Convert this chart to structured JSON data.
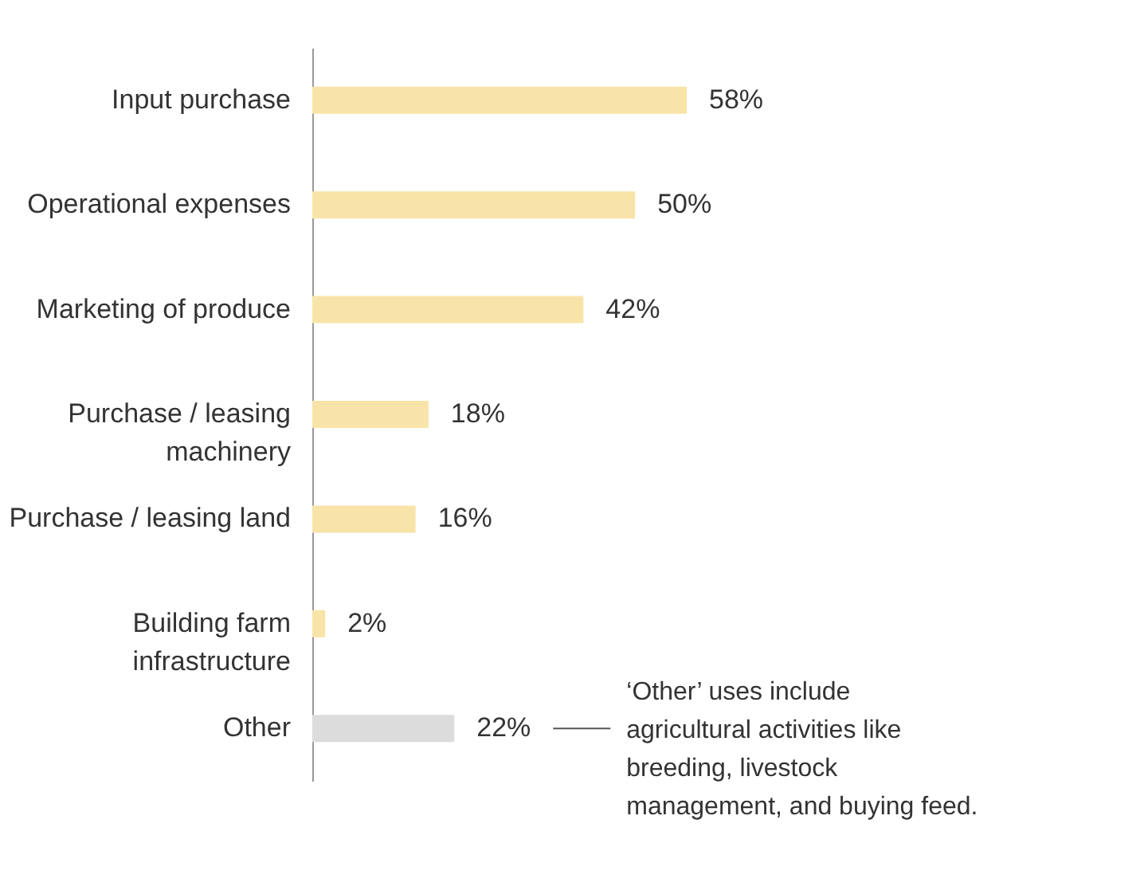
{
  "chart_data": {
    "type": "bar",
    "orientation": "horizontal",
    "categories": [
      "Input purchase",
      "Operational expenses",
      "Marketing of produce",
      "Purchase / leasing\nmachinery",
      "Purchase / leasing land",
      "Building farm\ninfrastructure",
      "Other"
    ],
    "values": [
      58,
      50,
      42,
      18,
      16,
      2,
      22
    ],
    "colors": [
      "#f8e4a8",
      "#f8e4a8",
      "#f8e4a8",
      "#f8e4a8",
      "#f8e4a8",
      "#f8e4a8",
      "#dcdcdc"
    ],
    "value_labels": [
      "58%",
      "50%",
      "42%",
      "18%",
      "16%",
      "2%",
      "22%"
    ],
    "annotations": [
      "‘Other’ uses include agricultural activities like breeding, livestock management, and buying feed."
    ]
  }
}
